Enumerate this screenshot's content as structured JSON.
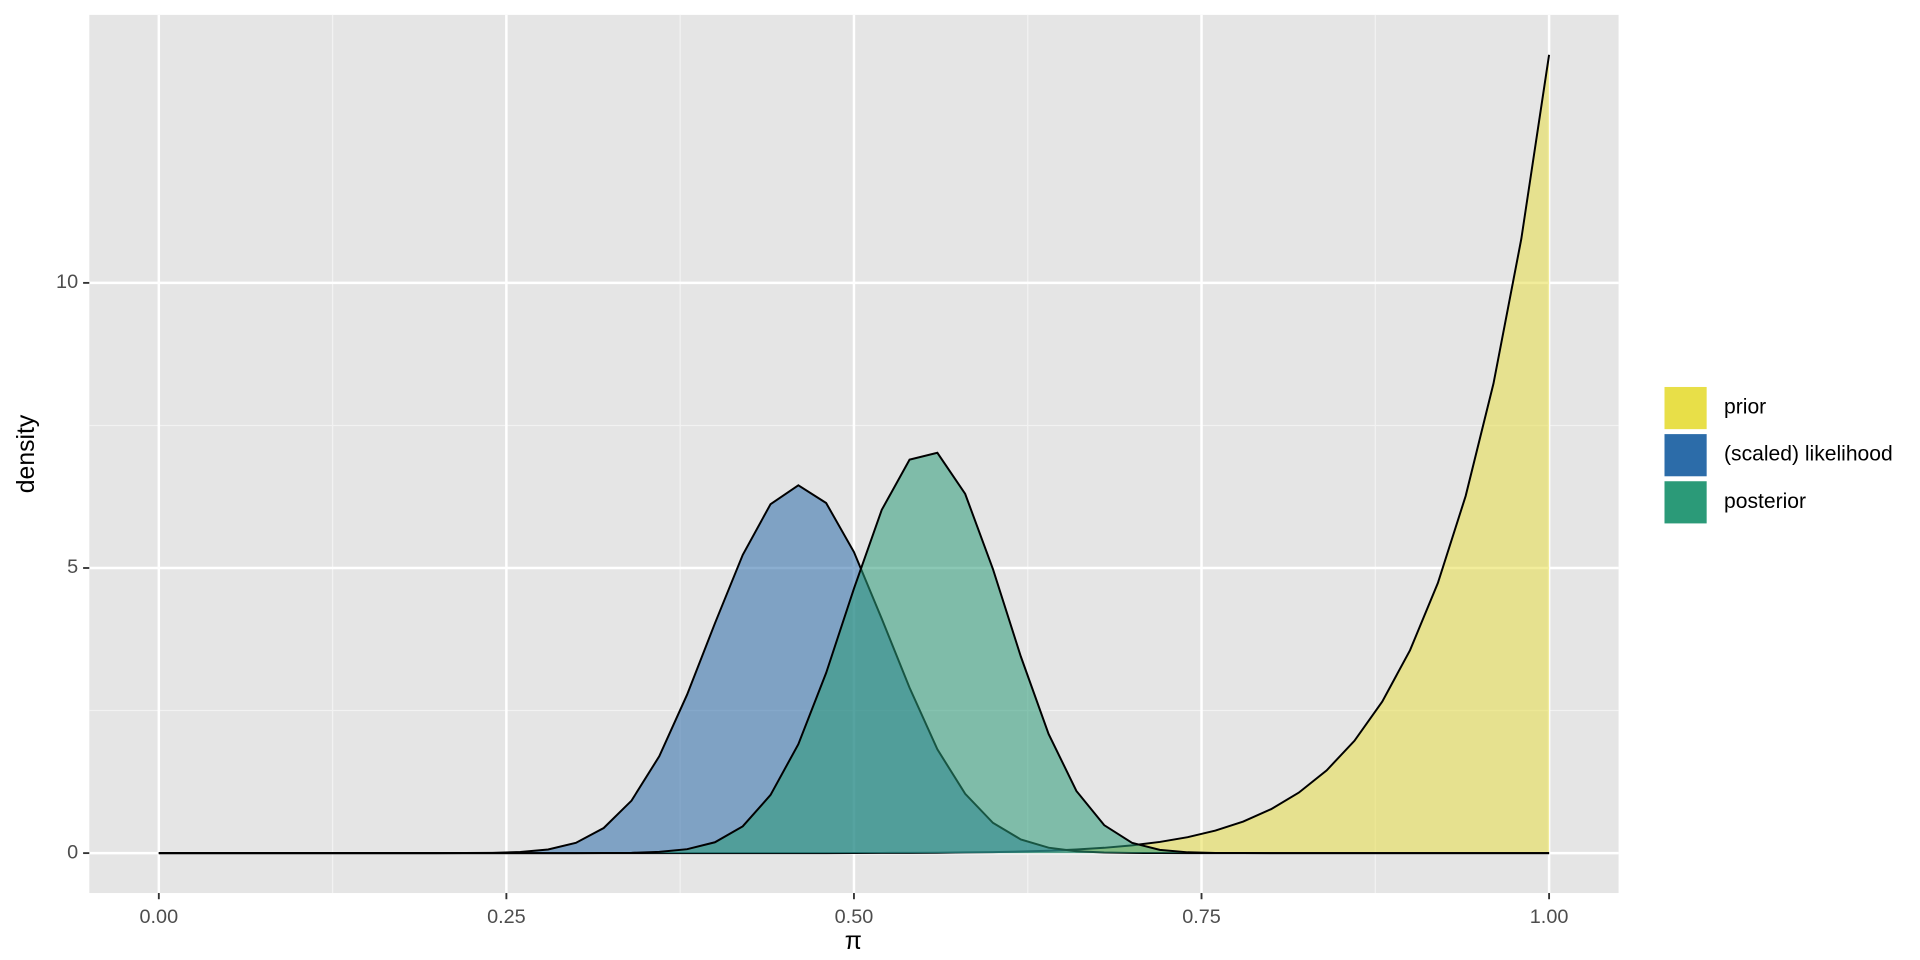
{
  "chart_data": {
    "type": "area",
    "x_label": "π",
    "y_label": "density",
    "xlim": [
      -0.05,
      1.05
    ],
    "ylim": [
      -0.7,
      14.7
    ],
    "xticks": [
      {
        "value": 0,
        "label": "0.00"
      },
      {
        "value": 0.25,
        "label": "0.25"
      },
      {
        "value": 0.5,
        "label": "0.50"
      },
      {
        "value": 0.75,
        "label": "0.75"
      },
      {
        "value": 1,
        "label": "1.00"
      }
    ],
    "yticks": [
      0,
      5,
      10
    ],
    "grid": true,
    "legend": "right",
    "x": [
      0,
      0.02,
      0.04,
      0.06,
      0.08,
      0.1,
      0.12,
      0.14,
      0.16,
      0.18,
      0.2,
      0.22,
      0.24,
      0.26,
      0.28,
      0.3,
      0.32,
      0.34,
      0.36,
      0.38,
      0.4,
      0.42,
      0.44,
      0.46,
      0.48,
      0.5,
      0.52,
      0.54,
      0.56,
      0.58,
      0.6,
      0.62,
      0.64,
      0.66,
      0.68,
      0.7,
      0.72,
      0.74,
      0.76,
      0.78,
      0.8,
      0.82,
      0.84,
      0.86,
      0.88,
      0.9,
      0.92,
      0.94,
      0.96,
      0.98,
      1
    ],
    "series": [
      {
        "name": "prior",
        "color": "#e8df48",
        "values": [
          0,
          0,
          0,
          0,
          0,
          0,
          0,
          0,
          0,
          0,
          0,
          0,
          0,
          0,
          0,
          0,
          0,
          0,
          0,
          0,
          0,
          0,
          0,
          0,
          0,
          0.002,
          0.003,
          0.005,
          0.007,
          0.012,
          0.018,
          0.028,
          0.042,
          0.063,
          0.093,
          0.136,
          0.196,
          0.279,
          0.395,
          0.554,
          0.77,
          1.061,
          1.451,
          1.97,
          2.657,
          3.559,
          4.736,
          6.264,
          8.235,
          10.77,
          14
        ]
      },
      {
        "name": "(scaled) likelihood",
        "color": "#2c6ca9",
        "values": [
          0,
          0,
          0,
          0,
          0,
          0,
          0,
          0,
          0,
          0,
          0,
          0.001,
          0.005,
          0.019,
          0.064,
          0.18,
          0.44,
          0.92,
          1.7,
          2.78,
          4.03,
          5.23,
          6.12,
          6.45,
          6.14,
          5.28,
          4.11,
          2.9,
          1.82,
          1.04,
          0.53,
          0.24,
          0.095,
          0.033,
          0.01,
          0.003,
          0.001,
          0,
          0,
          0,
          0,
          0,
          0,
          0,
          0,
          0,
          0,
          0,
          0,
          0,
          0
        ]
      },
      {
        "name": "posterior",
        "color": "#2b9a78",
        "values": [
          0,
          0,
          0,
          0,
          0,
          0,
          0,
          0,
          0,
          0,
          0,
          0,
          0,
          0,
          0,
          0,
          0.001,
          0.005,
          0.021,
          0.069,
          0.19,
          0.47,
          1.02,
          1.91,
          3.16,
          4.64,
          6.02,
          6.9,
          7.02,
          6.3,
          4.98,
          3.45,
          2.09,
          1.09,
          0.49,
          0.18,
          0.057,
          0.014,
          0.003,
          0.001,
          0,
          0,
          0,
          0,
          0,
          0,
          0,
          0,
          0,
          0,
          0
        ]
      }
    ]
  }
}
